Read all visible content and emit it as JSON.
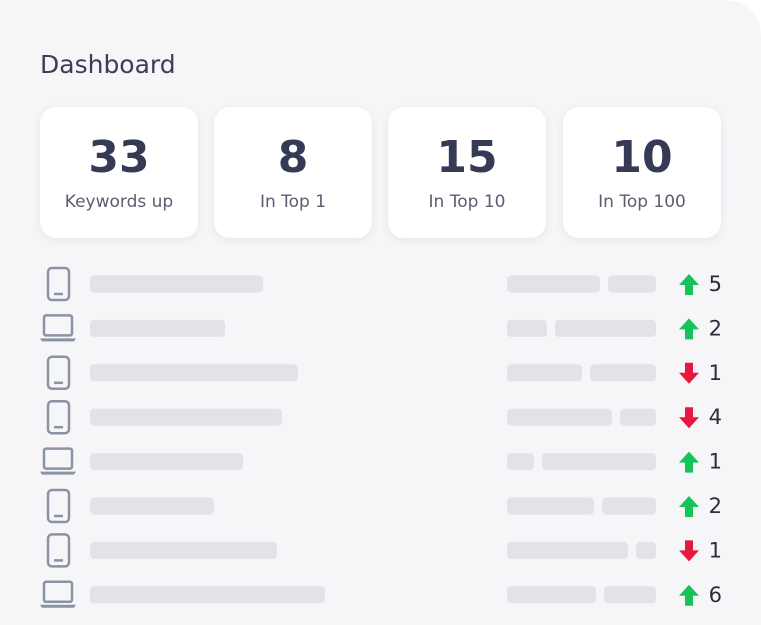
{
  "header": {
    "title": "Dashboard"
  },
  "stats": [
    {
      "value": 33,
      "label": "Keywords up"
    },
    {
      "value": 8,
      "label": "In Top 1"
    },
    {
      "value": 15,
      "label": "In Top 10"
    },
    {
      "value": 10,
      "label": "In Top 100"
    }
  ],
  "rows": [
    {
      "device": "mobile",
      "direction": "up",
      "change": 5
    },
    {
      "device": "desktop",
      "direction": "up",
      "change": 2
    },
    {
      "device": "mobile",
      "direction": "down",
      "change": 1
    },
    {
      "device": "mobile",
      "direction": "down",
      "change": 4
    },
    {
      "device": "desktop",
      "direction": "up",
      "change": 1
    },
    {
      "device": "mobile",
      "direction": "up",
      "change": 2
    },
    {
      "device": "mobile",
      "direction": "down",
      "change": 1
    },
    {
      "device": "desktop",
      "direction": "up",
      "change": 6
    }
  ]
}
